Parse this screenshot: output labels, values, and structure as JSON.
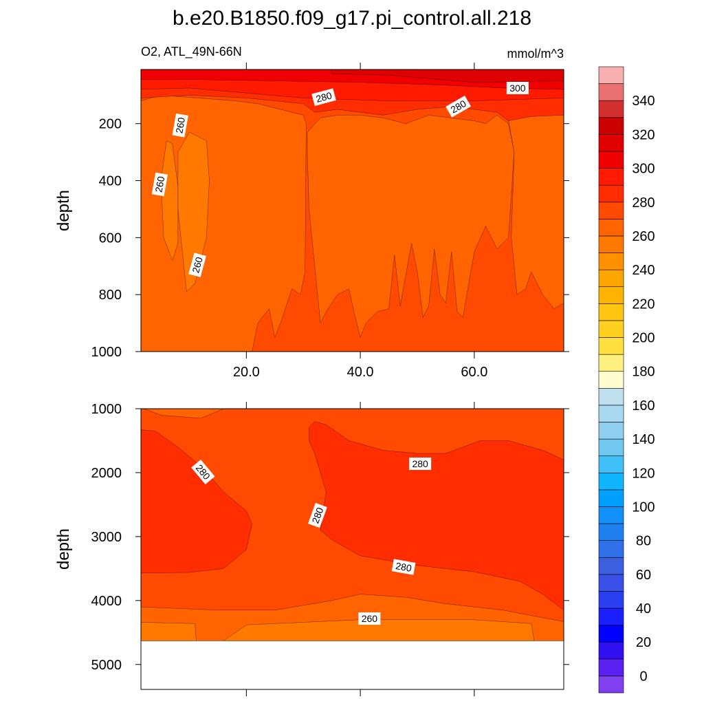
{
  "chart_data": [
    {
      "type": "contour",
      "title": "b.e20.B1850.f09_g17.pi_control.all.218",
      "subtitle": "O2, ATL_49N-66N",
      "units": "mmol/m^3",
      "ylabel": "depth",
      "y_inverted": true,
      "show_xtick_labels": true,
      "xlim": [
        1.5,
        75.7
      ],
      "ylim": [
        10,
        1000
      ],
      "xticks": [
        {
          "value": 20,
          "label": "20.0"
        },
        {
          "value": 40,
          "label": "40.0"
        },
        {
          "value": 60,
          "label": "60.0"
        }
      ],
      "yticks": [
        200,
        400,
        600,
        800,
        1000
      ],
      "regions": [
        {
          "level": 270,
          "points": [
            [
              1.5,
              10
            ],
            [
              75.7,
              10
            ],
            [
              75.7,
              1000
            ],
            [
              1.5,
              1000
            ]
          ]
        },
        {
          "level": 260,
          "points": [
            [
              1.5,
              120
            ],
            [
              5,
              100
            ],
            [
              18,
              120
            ],
            [
              22,
              130
            ],
            [
              30,
              170
            ],
            [
              30.5,
              200
            ],
            [
              30.3,
              720
            ],
            [
              29.5,
              800
            ],
            [
              28,
              780
            ],
            [
              26,
              900
            ],
            [
              25,
              950
            ],
            [
              24,
              850
            ],
            [
              22,
              900
            ],
            [
              21,
              1000
            ],
            [
              1.5,
              1000
            ]
          ]
        },
        {
          "level": 260,
          "points": [
            [
              30.7,
              230
            ],
            [
              33,
              180
            ],
            [
              36,
              170
            ],
            [
              40,
              170
            ],
            [
              44,
              180
            ],
            [
              48,
              200
            ],
            [
              52,
              170
            ],
            [
              56,
              180
            ],
            [
              60,
              190
            ],
            [
              62,
              200
            ],
            [
              64,
              170
            ],
            [
              66,
              200
            ],
            [
              67,
              300
            ],
            [
              66,
              600
            ],
            [
              64,
              640
            ],
            [
              62,
              560
            ],
            [
              60,
              650
            ],
            [
              58,
              880
            ],
            [
              57,
              860
            ],
            [
              56,
              650
            ],
            [
              55,
              830
            ],
            [
              54,
              800
            ],
            [
              53,
              640
            ],
            [
              52,
              840
            ],
            [
              51,
              880
            ],
            [
              50,
              720
            ],
            [
              49,
              620
            ],
            [
              48,
              730
            ],
            [
              47,
              840
            ],
            [
              46,
              660
            ],
            [
              45,
              850
            ],
            [
              43,
              860
            ],
            [
              41,
              900
            ],
            [
              40,
              950
            ],
            [
              39,
              870
            ],
            [
              38,
              780
            ],
            [
              36,
              800
            ],
            [
              34,
              860
            ],
            [
              33,
              900
            ],
            [
              32,
              700
            ],
            [
              31,
              500
            ],
            [
              30.7,
              300
            ]
          ]
        },
        {
          "level": 260,
          "points": [
            [
              68,
              180
            ],
            [
              72,
              170
            ],
            [
              75.7,
              170
            ],
            [
              75.7,
              830
            ],
            [
              74,
              850
            ],
            [
              72,
              800
            ],
            [
              70,
              720
            ],
            [
              69,
              780
            ],
            [
              67.5,
              800
            ],
            [
              66.5,
              600
            ],
            [
              67,
              300
            ],
            [
              66,
              190
            ]
          ]
        },
        {
          "level": 250,
          "points": [
            [
              6,
              260
            ],
            [
              7,
              270
            ],
            [
              8,
              420
            ],
            [
              8,
              620
            ],
            [
              7,
              680
            ],
            [
              5.5,
              600
            ],
            [
              5,
              400
            ]
          ]
        },
        {
          "level": 250,
          "points": [
            [
              8,
              300
            ],
            [
              10,
              230
            ],
            [
              13,
              260
            ],
            [
              13.5,
              400
            ],
            [
              13,
              600
            ],
            [
              11,
              760
            ],
            [
              9.5,
              790
            ],
            [
              8,
              500
            ]
          ]
        },
        {
          "level": 280,
          "points": [
            [
              1.5,
              10
            ],
            [
              75.7,
              10
            ],
            [
              75.7,
              170
            ],
            [
              70,
              175
            ],
            [
              66,
              190
            ],
            [
              64,
              160
            ],
            [
              60,
              150
            ],
            [
              56,
              140
            ],
            [
              50,
              150
            ],
            [
              44,
              170
            ],
            [
              40,
              160
            ],
            [
              36,
              150
            ],
            [
              32,
              160
            ],
            [
              30,
              130
            ],
            [
              20,
              110
            ],
            [
              10,
              100
            ],
            [
              1.5,
              110
            ]
          ]
        },
        {
          "level": 290,
          "points": [
            [
              1.5,
              10
            ],
            [
              75.7,
              10
            ],
            [
              75.7,
              110
            ],
            [
              60,
              120
            ],
            [
              45,
              120
            ],
            [
              30,
              110
            ],
            [
              10,
              75
            ],
            [
              1.5,
              80
            ]
          ]
        },
        {
          "level": 300,
          "points": [
            [
              1.5,
              10
            ],
            [
              75.7,
              10
            ],
            [
              75.7,
              80
            ],
            [
              65,
              75
            ],
            [
              55,
              65
            ],
            [
              40,
              55
            ],
            [
              25,
              50
            ],
            [
              10,
              45
            ],
            [
              1.5,
              45
            ]
          ]
        },
        {
          "level": 310,
          "points": [
            [
              35,
              10
            ],
            [
              75.7,
              10
            ],
            [
              75.7,
              50
            ],
            [
              60,
              55
            ],
            [
              45,
              30
            ],
            [
              35,
              25
            ]
          ]
        }
      ],
      "contour_labels": [
        {
          "value": 260,
          "x": 8.4,
          "y": 206
        },
        {
          "value": 260,
          "x": 4.8,
          "y": 413
        },
        {
          "value": 260,
          "x": 11.4,
          "y": 696
        },
        {
          "value": 280,
          "x": 33.6,
          "y": 107
        },
        {
          "value": 280,
          "x": 57.2,
          "y": 140
        },
        {
          "value": 300,
          "x": 67.6,
          "y": 75
        }
      ]
    },
    {
      "type": "contour",
      "ylabel": "depth",
      "y_inverted": true,
      "show_xtick_labels": false,
      "xlim": [
        1.5,
        75.7
      ],
      "ylim": [
        1000,
        5390
      ],
      "xticks": [
        20,
        40,
        60
      ],
      "yticks": [
        1000,
        2000,
        3000,
        4000,
        5000
      ],
      "regions": [
        {
          "level": 270,
          "points": [
            [
              1.5,
              1000
            ],
            [
              75.7,
              1000
            ],
            [
              75.7,
              4630
            ],
            [
              1.5,
              4630
            ]
          ]
        },
        {
          "level": 260,
          "points": [
            [
              2,
              1000
            ],
            [
              16,
              1000
            ],
            [
              12,
              1150
            ],
            [
              5,
              1100
            ]
          ]
        },
        {
          "level": 280,
          "points": [
            [
              1.5,
              1330
            ],
            [
              4,
              1350
            ],
            [
              8,
              1600
            ],
            [
              12,
              1900
            ],
            [
              16,
              2300
            ],
            [
              20,
              2600
            ],
            [
              21,
              2800
            ],
            [
              20,
              3200
            ],
            [
              16,
              3500
            ],
            [
              10,
              3560
            ],
            [
              1.5,
              3570
            ]
          ]
        },
        {
          "level": 280,
          "points": [
            [
              31,
              1300
            ],
            [
              32,
              1200
            ],
            [
              34,
              1250
            ],
            [
              38,
              1500
            ],
            [
              44,
              1650
            ],
            [
              50,
              1700
            ],
            [
              55,
              1700
            ],
            [
              58,
              1600
            ],
            [
              61,
              1500
            ],
            [
              66,
              1500
            ],
            [
              72,
              1650
            ],
            [
              75.7,
              1800
            ],
            [
              75.7,
              4150
            ],
            [
              72,
              3900
            ],
            [
              68,
              3700
            ],
            [
              60,
              3550
            ],
            [
              50,
              3450
            ],
            [
              40,
              3300
            ],
            [
              35,
              3050
            ],
            [
              33,
              2900
            ],
            [
              34,
              2300
            ],
            [
              33,
              2000
            ],
            [
              32,
              1700
            ],
            [
              31,
              1500
            ]
          ]
        },
        {
          "level": 260,
          "points": [
            [
              1.5,
              4100
            ],
            [
              15,
              4150
            ],
            [
              25,
              4150
            ],
            [
              35,
              4000
            ],
            [
              40,
              3900
            ],
            [
              48,
              3950
            ],
            [
              55,
              4050
            ],
            [
              65,
              4150
            ],
            [
              75.7,
              4330
            ],
            [
              75.7,
              4630
            ],
            [
              1.5,
              4630
            ]
          ]
        },
        {
          "level": 250,
          "points": [
            [
              16,
              4630
            ],
            [
              20,
              4380
            ],
            [
              40,
              4300
            ],
            [
              60,
              4300
            ],
            [
              70,
              4360
            ],
            [
              70.5,
              4630
            ]
          ]
        },
        {
          "level": 250,
          "points": [
            [
              1.5,
              4340
            ],
            [
              11,
              4360
            ],
            [
              11.2,
              4630
            ],
            [
              1.5,
              4630
            ]
          ]
        }
      ],
      "contour_labels": [
        {
          "value": 280,
          "x": 12.4,
          "y": 1990
        },
        {
          "value": 280,
          "x": 32.5,
          "y": 2668
        },
        {
          "value": 280,
          "x": 50.5,
          "y": 1861
        },
        {
          "value": 280,
          "x": 47.6,
          "y": 3475
        },
        {
          "value": 260,
          "x": 41.6,
          "y": 4282
        }
      ]
    }
  ],
  "colorbar": {
    "lim": [
      -10,
      360
    ],
    "ticks": [
      0,
      20,
      40,
      60,
      80,
      100,
      120,
      140,
      160,
      180,
      200,
      220,
      240,
      260,
      280,
      300,
      320,
      340
    ],
    "colors": [
      "#8040f0",
      "#5a20f0",
      "#3010f0",
      "#0000ff",
      "#1a20ff",
      "#2a40f0",
      "#3a50e8",
      "#3a60e0",
      "#3070e8",
      "#2080f0",
      "#1090f8",
      "#00a0ff",
      "#10b4ff",
      "#40c0f8",
      "#70c8f0",
      "#90cff0",
      "#a8d8f0",
      "#c0e0f0",
      "#fffdd0",
      "#fff080",
      "#ffe040",
      "#ffd020",
      "#ffc510",
      "#ffb400",
      "#ffa500",
      "#ff9000",
      "#ff7800",
      "#ff6400",
      "#ff4a00",
      "#ff2d00",
      "#ff1a00",
      "#f00000",
      "#e00000",
      "#cc0000",
      "#d43030",
      "#e87070",
      "#f8b0b0"
    ]
  }
}
